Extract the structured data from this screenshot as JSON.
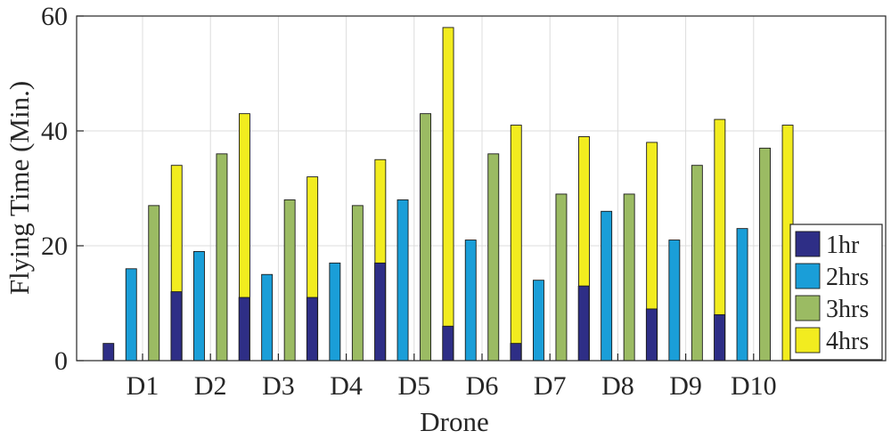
{
  "chart_data": {
    "type": "bar",
    "title": "",
    "xlabel": "Drone",
    "ylabel": "Flying Time (Min.)",
    "ylim": [
      0,
      60
    ],
    "yticks": [
      "0",
      "20",
      "40",
      "60"
    ],
    "ytick_values": [
      0,
      20,
      40,
      60
    ],
    "grid": true,
    "legend_position": "right",
    "categories": [
      "D1",
      "D2",
      "D3",
      "D4",
      "D5",
      "D6",
      "D7",
      "D8",
      "D9",
      "D10"
    ],
    "series": [
      {
        "name": "1hr",
        "color": "#2e2e86",
        "values": [
          3,
          12,
          11,
          11,
          17,
          6,
          3,
          13,
          9,
          8
        ]
      },
      {
        "name": "2hrs",
        "color": "#1a9ed8",
        "values": [
          16,
          19,
          15,
          17,
          28,
          21,
          14,
          26,
          21,
          23
        ]
      },
      {
        "name": "3hrs",
        "color": "#9bbb63",
        "values": [
          27,
          36,
          28,
          27,
          43,
          36,
          29,
          29,
          34,
          37
        ]
      },
      {
        "name": "4hrs",
        "color": "#f2ec1f",
        "values": [
          34,
          43,
          32,
          35,
          58,
          41,
          39,
          38,
          42,
          41
        ]
      }
    ]
  }
}
